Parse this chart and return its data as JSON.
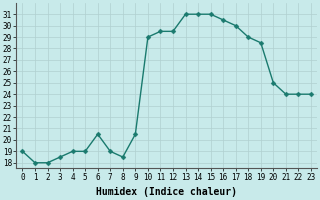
{
  "x": [
    0,
    1,
    2,
    3,
    4,
    5,
    6,
    7,
    8,
    9,
    10,
    11,
    12,
    13,
    14,
    15,
    16,
    17,
    18,
    19,
    20,
    21,
    22,
    23
  ],
  "y": [
    19,
    18,
    18,
    18.5,
    19,
    19,
    20.5,
    19,
    18.5,
    20.5,
    29,
    29.5,
    29.5,
    31,
    31,
    31,
    30.5,
    30,
    29,
    28.5,
    25,
    24,
    24,
    24
  ],
  "line_color": "#1a7a6e",
  "marker_color": "#1a7a6e",
  "bg_color": "#c8eaea",
  "grid_color": "#b0d0d0",
  "xlabel": "Humidex (Indice chaleur)",
  "ylim": [
    17.5,
    32
  ],
  "xlim": [
    -0.5,
    23.5
  ],
  "yticks": [
    18,
    19,
    20,
    21,
    22,
    23,
    24,
    25,
    26,
    27,
    28,
    29,
    30,
    31
  ],
  "xticks": [
    0,
    1,
    2,
    3,
    4,
    5,
    6,
    7,
    8,
    9,
    10,
    11,
    12,
    13,
    14,
    15,
    16,
    17,
    18,
    19,
    20,
    21,
    22,
    23
  ],
  "xlabel_fontsize": 7,
  "tick_fontsize": 5.5,
  "line_width": 1.0,
  "marker_size": 2.5
}
